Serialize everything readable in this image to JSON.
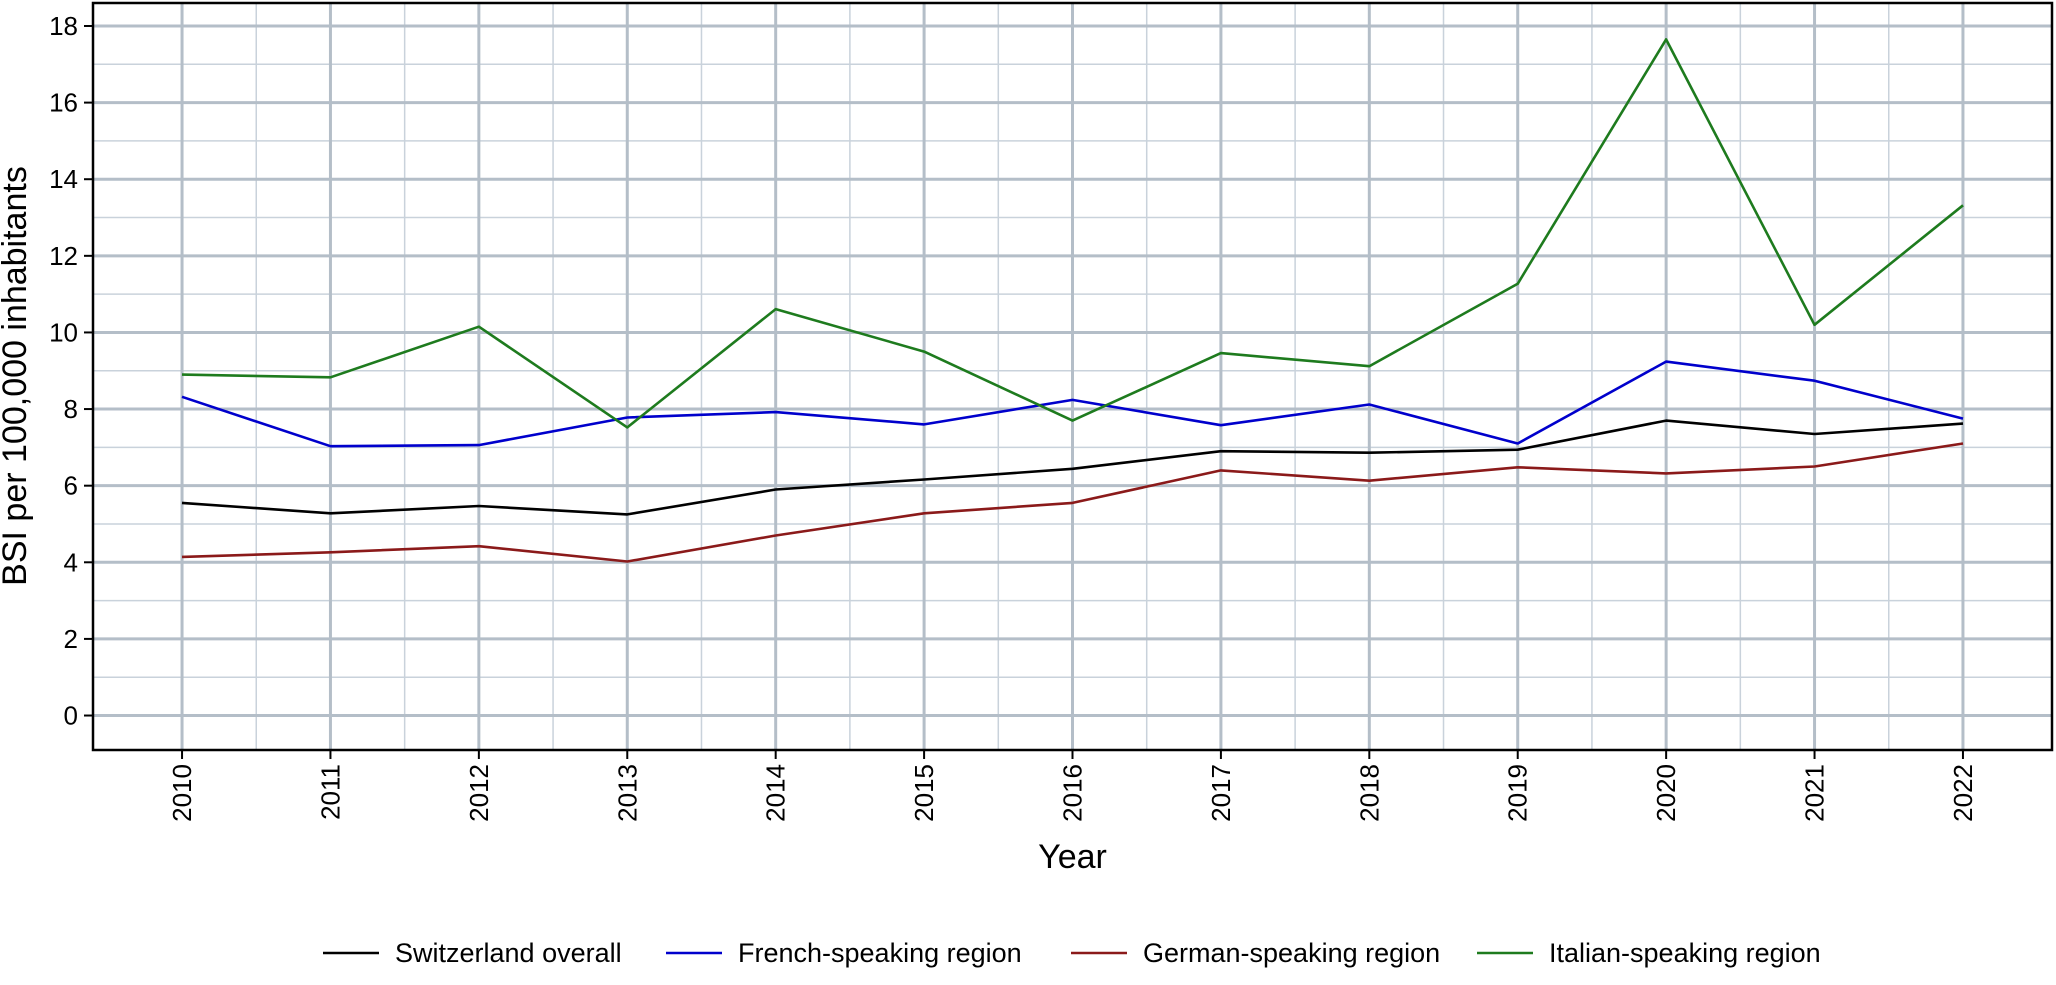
{
  "chart_data": {
    "type": "line",
    "xlabel": "Year",
    "ylabel": "BSI per 100,000 inhabitants",
    "x": [
      2010,
      2011,
      2012,
      2013,
      2014,
      2015,
      2016,
      2017,
      2018,
      2019,
      2020,
      2021,
      2022
    ],
    "x_tick_labels": [
      "2010",
      "2011",
      "2012",
      "2013",
      "2014",
      "2015",
      "2016",
      "2017",
      "2018",
      "2019",
      "2020",
      "2021",
      "2022"
    ],
    "y_ticks": [
      0,
      2,
      4,
      6,
      8,
      10,
      12,
      14,
      16,
      18
    ],
    "y_tick_labels": [
      "0",
      "2",
      "4",
      "6",
      "8",
      "10",
      "12",
      "14",
      "16",
      "18"
    ],
    "ylim": [
      -0.9,
      18.6
    ],
    "xlim": [
      2009.4,
      2022.6
    ],
    "grid": true,
    "legend_position": "bottom",
    "series": [
      {
        "name": "Switzerland overall",
        "color": "#000000",
        "values": [
          5.55,
          5.28,
          5.47,
          5.25,
          5.9,
          6.16,
          6.44,
          6.9,
          6.86,
          6.94,
          7.7,
          7.35,
          7.62
        ]
      },
      {
        "name": "French-speaking region",
        "color": "#0000cc",
        "values": [
          8.32,
          7.03,
          7.06,
          7.78,
          7.92,
          7.6,
          8.24,
          7.58,
          8.12,
          7.1,
          9.24,
          8.74,
          7.75
        ]
      },
      {
        "name": "German-speaking region",
        "color": "#8b1a1a",
        "values": [
          4.14,
          4.26,
          4.42,
          4.02,
          4.7,
          5.28,
          5.55,
          6.4,
          6.13,
          6.48,
          6.32,
          6.5,
          7.1
        ]
      },
      {
        "name": "Italian-speaking region",
        "color": "#1e7b1e",
        "values": [
          8.9,
          8.83,
          10.15,
          7.52,
          10.61,
          9.5,
          7.7,
          9.46,
          9.12,
          11.27,
          17.65,
          10.2,
          13.32
        ]
      }
    ]
  }
}
